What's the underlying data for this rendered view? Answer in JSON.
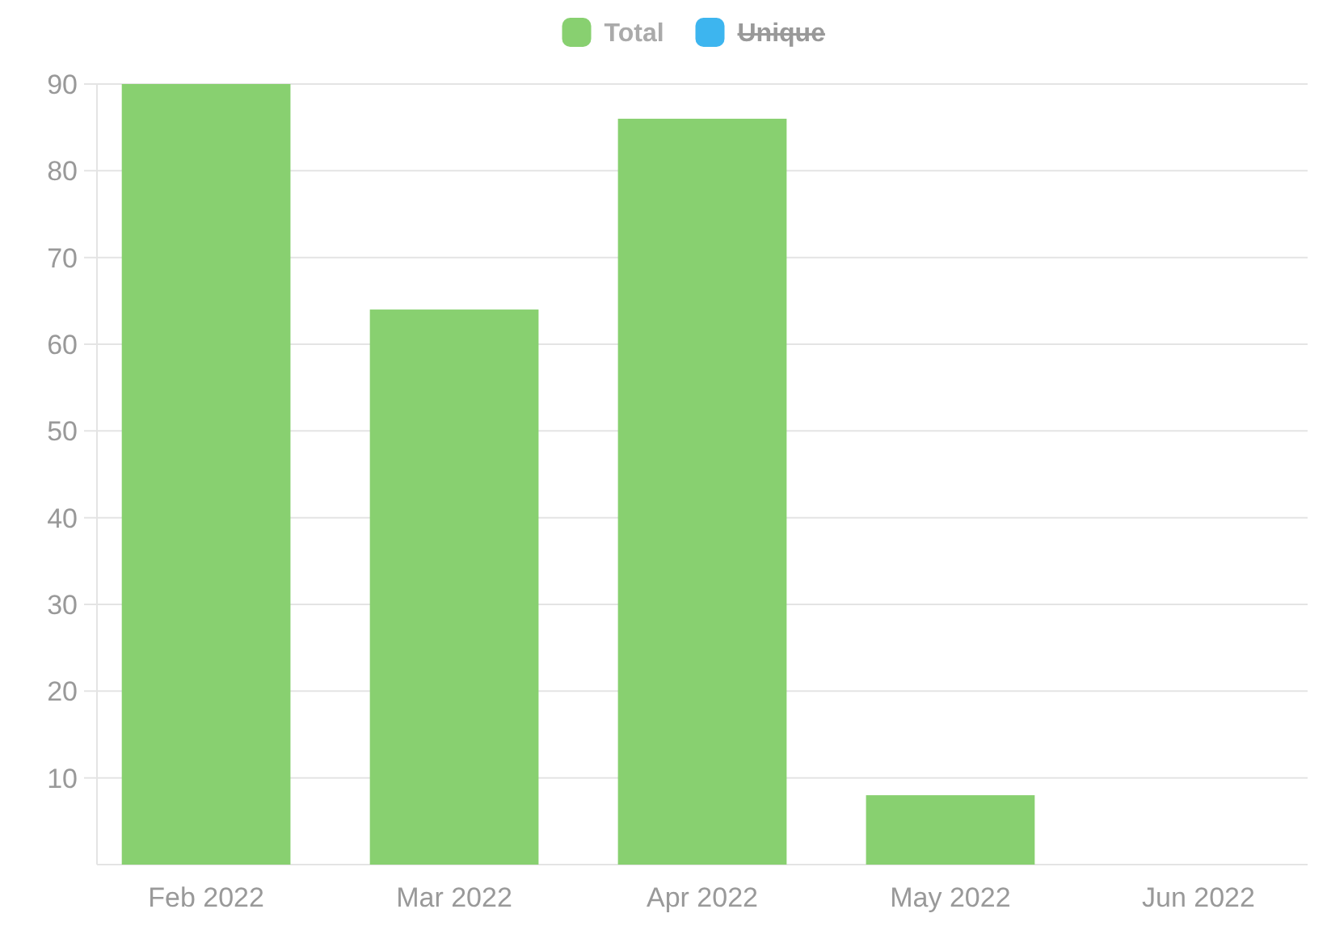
{
  "chart_data": {
    "type": "bar",
    "categories": [
      "Feb 2022",
      "Mar 2022",
      "Apr 2022",
      "May 2022",
      "Jun 2022"
    ],
    "series": [
      {
        "name": "Total",
        "color": "#88d070",
        "values": [
          90,
          64,
          86,
          8,
          0
        ]
      },
      {
        "name": "Unique",
        "color": "#3db5ef",
        "values": [
          null,
          null,
          null,
          null,
          null
        ]
      }
    ],
    "ylim": [
      0,
      90
    ],
    "yticks": [
      10,
      20,
      30,
      40,
      50,
      60,
      70,
      80,
      90
    ],
    "grid": "y",
    "legend": "top"
  }
}
